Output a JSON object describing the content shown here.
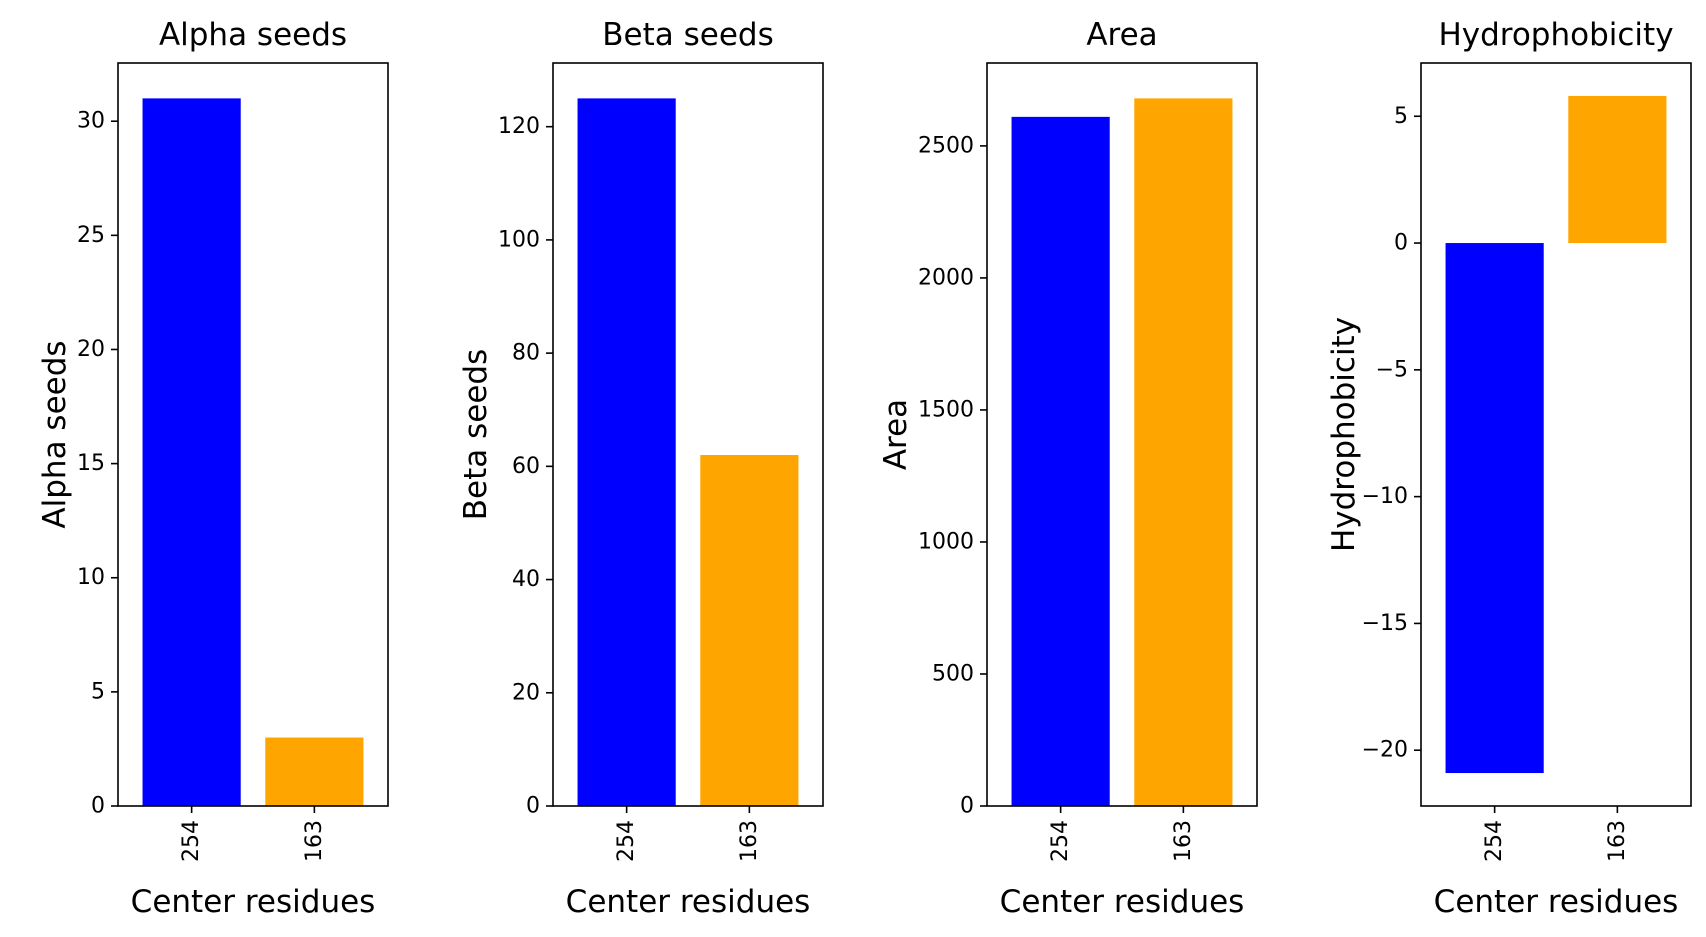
{
  "chart_data": [
    {
      "type": "bar",
      "title": "Alpha seeds",
      "xlabel": "Center residues",
      "ylabel": "Alpha seeds",
      "categories": [
        "254",
        "163"
      ],
      "values": [
        31,
        3
      ],
      "colors": [
        "#0000ff",
        "#ffa500"
      ],
      "ylim": [
        0,
        32.55
      ],
      "yticks": [
        0,
        5,
        10,
        15,
        20,
        25,
        30
      ],
      "grid": false
    },
    {
      "type": "bar",
      "title": "Beta seeds",
      "xlabel": "Center residues",
      "ylabel": "Beta seeds",
      "categories": [
        "254",
        "163"
      ],
      "values": [
        125,
        62
      ],
      "colors": [
        "#0000ff",
        "#ffa500"
      ],
      "ylim": [
        0,
        131.25
      ],
      "yticks": [
        0,
        20,
        40,
        60,
        80,
        100,
        120
      ],
      "grid": false
    },
    {
      "type": "bar",
      "title": "Area",
      "xlabel": "Center residues",
      "ylabel": "Area",
      "categories": [
        "254",
        "163"
      ],
      "values": [
        2610,
        2680
      ],
      "colors": [
        "#0000ff",
        "#ffa500"
      ],
      "ylim": [
        0,
        2814
      ],
      "yticks": [
        0,
        500,
        1000,
        1500,
        2000,
        2500
      ],
      "grid": false
    },
    {
      "type": "bar",
      "title": "Hydrophobicity",
      "xlabel": "Center residues",
      "ylabel": "Hydrophobicity",
      "categories": [
        "254",
        "163"
      ],
      "values": [
        -20.9,
        5.8
      ],
      "colors": [
        "#0000ff",
        "#ffa500"
      ],
      "ylim": [
        -22.2,
        7.1
      ],
      "yticks": [
        -20,
        -15,
        -10,
        -5,
        0,
        5
      ],
      "ytick_labels": [
        "−20",
        "−15",
        "−10",
        "−5",
        "0",
        "5"
      ],
      "grid": false
    }
  ]
}
